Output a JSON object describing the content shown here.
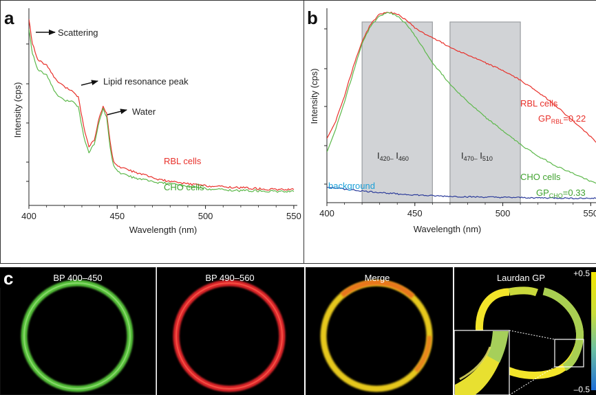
{
  "panel_a": {
    "letter": "a",
    "annotations": {
      "scattering": "Scattering",
      "lipid": "Lipid resonance peak",
      "water": "Water"
    },
    "legend": {
      "rbl": "RBL cells",
      "cho": "CHO cells"
    }
  },
  "panel_b": {
    "letter": "b",
    "box1": {
      "main1": "I",
      "sub1": "420–",
      "main2": " I",
      "sub2": "460"
    },
    "box2": {
      "main1": "I",
      "sub1": "470–",
      "main2": " I",
      "sub2": "510"
    },
    "rbl_label": "RBL cells",
    "gp_rbl": {
      "prefix": "GP",
      "sub": "RBL",
      "value": "=0.22"
    },
    "cho_label": "CHO cells",
    "gp_cho": {
      "prefix": "GP",
      "sub": "CHO",
      "value": "=0.33"
    },
    "background_label": "background"
  },
  "panel_c": {
    "letter": "c",
    "images": [
      "BP 400–450",
      "BP 490–560",
      "Merge",
      "Laurdan GP"
    ],
    "scale_top": "+0.5",
    "scale_bottom": "–0.5"
  },
  "colors": {
    "rbl": "#e8302a",
    "cho": "#5cb84a",
    "background_line": "#2a3a9a",
    "background_label": "#1aa0d8",
    "box_fill": "#c9ccd0",
    "box_stroke": "#8a8e92"
  },
  "chart_data": [
    {
      "type": "line",
      "title": "",
      "xlabel": "Wavelength (nm)",
      "ylabel": "Intensity (cps)",
      "xlim": [
        400,
        552
      ],
      "ylim": [
        0,
        100
      ],
      "x_ticks": [
        400,
        450,
        500,
        550
      ],
      "x_tick_labels": [
        "400",
        "450",
        "500",
        "550"
      ],
      "grid": false,
      "series": [
        {
          "name": "RBL cells",
          "color": "#e8302a",
          "x": [
            400,
            402,
            405,
            410,
            415,
            420,
            425,
            428,
            431,
            434,
            437,
            440,
            442,
            444,
            446,
            448,
            452,
            460,
            470,
            480,
            490,
            500,
            510,
            520,
            530,
            540,
            550
          ],
          "y": [
            95,
            82,
            74,
            71,
            64,
            60,
            58,
            55,
            40,
            30,
            33,
            45,
            50,
            47,
            32,
            22,
            19,
            17,
            14,
            12,
            11,
            10,
            9.5,
            9,
            8.5,
            8,
            8
          ]
        },
        {
          "name": "CHO cells",
          "color": "#5cb84a",
          "x": [
            400,
            402,
            405,
            410,
            415,
            420,
            425,
            428,
            431,
            434,
            437,
            440,
            442,
            444,
            446,
            448,
            452,
            460,
            470,
            480,
            490,
            500,
            510,
            520,
            530,
            540,
            550
          ],
          "y": [
            90,
            77,
            69,
            66,
            57,
            53,
            53,
            50,
            35,
            27,
            31,
            43,
            49,
            45,
            29,
            20,
            16,
            14,
            12,
            11,
            9.5,
            8.5,
            8,
            7.5,
            7.5,
            7,
            7
          ]
        }
      ]
    },
    {
      "type": "line",
      "title": "",
      "xlabel": "Wavelength (nm)",
      "ylabel": "Intensity (cps)",
      "xlim": [
        400,
        553
      ],
      "ylim": [
        0,
        100
      ],
      "x_ticks": [
        400,
        450,
        500,
        550
      ],
      "x_tick_labels": [
        "400",
        "450",
        "500",
        "550"
      ],
      "grid": false,
      "shaded_bands": [
        [
          420,
          460
        ],
        [
          470,
          510
        ]
      ],
      "series": [
        {
          "name": "RBL cells",
          "color": "#e8302a",
          "x": [
            400,
            405,
            410,
            415,
            420,
            425,
            430,
            435,
            440,
            445,
            450,
            455,
            460,
            470,
            480,
            490,
            500,
            510,
            520,
            530,
            540,
            550,
            553
          ],
          "y": [
            33,
            42,
            55,
            70,
            83,
            92,
            97,
            98,
            97,
            94,
            90,
            87,
            85,
            80,
            76,
            72,
            68,
            63,
            57,
            50,
            42,
            34,
            31
          ]
        },
        {
          "name": "CHO cells",
          "color": "#5cb84a",
          "x": [
            400,
            405,
            410,
            415,
            420,
            425,
            430,
            435,
            440,
            445,
            450,
            455,
            460,
            470,
            480,
            490,
            500,
            510,
            520,
            530,
            540,
            550,
            553
          ],
          "y": [
            26,
            38,
            52,
            67,
            82,
            91,
            96,
            98,
            96,
            92,
            86,
            79,
            72,
            61,
            52,
            44,
            37,
            30,
            24,
            19,
            15,
            11,
            10
          ]
        },
        {
          "name": "background",
          "color": "#2a3a9a",
          "x": [
            400,
            420,
            440,
            460,
            480,
            500,
            520,
            540,
            553
          ],
          "y": [
            8,
            6,
            4.5,
            3.5,
            3,
            2.7,
            2.5,
            2.3,
            2.2
          ]
        }
      ]
    }
  ]
}
